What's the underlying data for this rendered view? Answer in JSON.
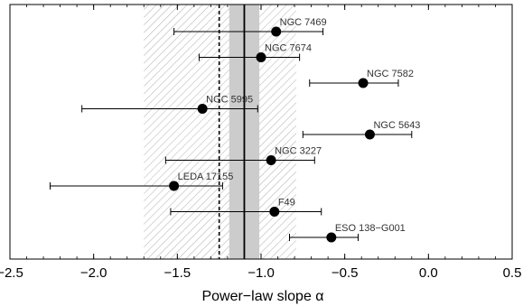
{
  "chart_data": {
    "type": "scatter",
    "title": "",
    "xlabel": "Power−law slope α",
    "ylabel": "",
    "xlim": [
      -2.5,
      0.5
    ],
    "xticks": [
      -2.5,
      -2.0,
      -1.5,
      -1.0,
      -0.5,
      0.0,
      0.5
    ],
    "xtick_labels": [
      "−2.5",
      "−2.0",
      "−1.5",
      "−1.0",
      "−0.5",
      "0.0",
      "0.5"
    ],
    "grid": false,
    "legend": "none",
    "points": [
      {
        "label": "NGC 7469",
        "alpha": -0.91,
        "err_low": -1.52,
        "err_high": -0.63
      },
      {
        "label": "NGC 7674",
        "alpha": -1.0,
        "err_low": -1.37,
        "err_high": -0.77
      },
      {
        "label": "NGC 7582",
        "alpha": -0.39,
        "err_low": -0.71,
        "err_high": -0.18
      },
      {
        "label": "NGC 5995",
        "alpha": -1.35,
        "err_low": -2.07,
        "err_high": -1.02
      },
      {
        "label": "NGC 5643",
        "alpha": -0.35,
        "err_low": -0.75,
        "err_high": -0.1
      },
      {
        "label": "NGC 3227",
        "alpha": -0.94,
        "err_low": -1.57,
        "err_high": -0.68
      },
      {
        "label": "LEDA 17155",
        "alpha": -1.52,
        "err_low": -2.26,
        "err_high": -1.23
      },
      {
        "label": "F49",
        "alpha": -0.92,
        "err_low": -1.54,
        "err_high": -0.64
      },
      {
        "label": "ESO 138−G001",
        "alpha": -0.58,
        "err_low": -0.83,
        "err_high": -0.42
      }
    ],
    "reference_lines": {
      "solid_mean": -1.1,
      "dashed": -1.25,
      "inner_band": [
        -1.19,
        -1.01
      ],
      "hatched_band": [
        -1.7,
        -0.79
      ]
    },
    "colors": {
      "marker": "#000000",
      "inner_band": "#cccccc",
      "hatch": "#9a9a9a",
      "label_text": "#333333"
    }
  }
}
